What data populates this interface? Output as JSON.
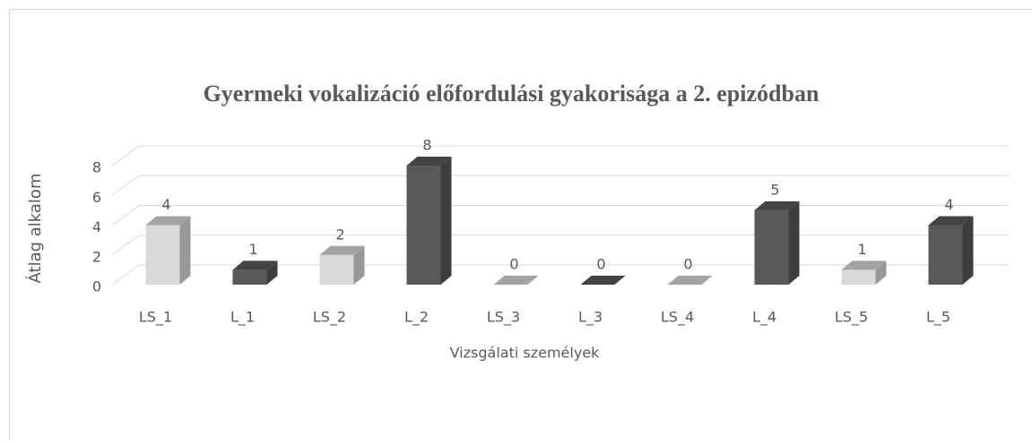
{
  "chart_data": {
    "type": "bar3d",
    "title": "Gyermeki vokalizáció előfordulási gyakorisága a 2. epizódban",
    "x_label": "Vizsgálati személyek",
    "y_label": "Átlag alkalom",
    "categories": [
      "LS_1",
      "L_1",
      "LS_2",
      "L_2",
      "LS_3",
      "L_3",
      "LS_4",
      "L_4",
      "LS_5",
      "L_5"
    ],
    "values": [
      4,
      1,
      2,
      8,
      0,
      0,
      0,
      5,
      1,
      4
    ],
    "colors": [
      "#d9d9d9",
      "#595959",
      "#d9d9d9",
      "#595959",
      "#d9d9d9",
      "#595959",
      "#d9d9d9",
      "#595959",
      "#d9d9d9",
      "#595959"
    ],
    "ylim": [
      0,
      8
    ],
    "yticks": [
      0,
      2,
      4,
      6,
      8
    ],
    "grid": true
  }
}
